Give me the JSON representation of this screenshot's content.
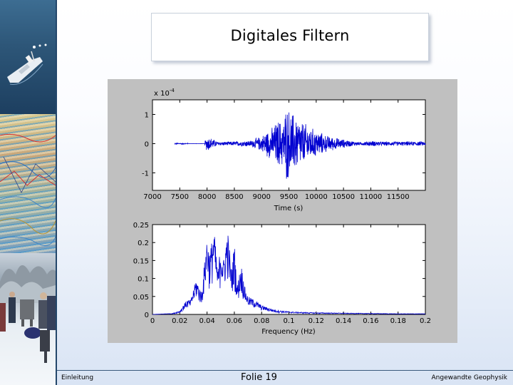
{
  "slide": {
    "title": "Digitales Filtern",
    "footer_left": "Einleitung",
    "footer_center": "Folie 19",
    "footer_right": "Angewandte Geophysik"
  },
  "colors": {
    "signal": "#0000d0",
    "figure_background": "#c0c0c0",
    "axes_background": "#ffffff",
    "slide_border": "#24476b"
  },
  "chart_data": [
    {
      "type": "line",
      "exponent_label": "x 10",
      "exponent_power": "-4",
      "xlabel": "Time (s)",
      "ylabel": "",
      "xlim": [
        7000,
        12000
      ],
      "ylim": [
        -1.6,
        1.5
      ],
      "x_ticks": [
        7000,
        7500,
        8000,
        8500,
        9000,
        9500,
        10000,
        10500,
        11000,
        11500
      ],
      "x_tick_labels": [
        "7000",
        "7500",
        "8000",
        "8500",
        "9000",
        "9500",
        "10000",
        "10500",
        "11000",
        "11500"
      ],
      "y_ticks": [
        1,
        0,
        -1
      ],
      "y_tick_labels": [
        "1",
        "0",
        "-1"
      ],
      "grid": false,
      "series": [
        {
          "description_values": "seismic trace, envelope amplitude by time",
          "envelope": {
            "x": [
              7400,
              7600,
              7900,
              7970,
              8000,
              8200,
              8500,
              8800,
              9000,
              9100,
              9200,
              9300,
              9400,
              9450,
              9500,
              9600,
              9700,
              9800,
              9900,
              10000,
              10200,
              10400,
              10600,
              10800,
              11000,
              11200,
              11500,
              11800
            ],
            "y": [
              0.02,
              0.02,
              0.02,
              0.15,
              0.3,
              0.07,
              0.08,
              0.12,
              0.28,
              0.5,
              0.6,
              0.9,
              0.85,
              1.45,
              1.3,
              1.1,
              0.9,
              0.75,
              0.6,
              0.5,
              0.3,
              0.2,
              0.12,
              0.06,
              0.1,
              0.08,
              0.08,
              0.08
            ]
          }
        }
      ]
    },
    {
      "type": "line",
      "xlabel": "Frequency (Hz)",
      "ylabel": "",
      "xlim": [
        0,
        0.2
      ],
      "ylim": [
        0,
        0.25
      ],
      "x_ticks": [
        0,
        0.02,
        0.04,
        0.06,
        0.08,
        0.1,
        0.12,
        0.14,
        0.16,
        0.18,
        0.2
      ],
      "x_tick_labels": [
        "0",
        "0.02",
        "0.04",
        "0.06",
        "0.08",
        "0.1",
        "0.12",
        "0.14",
        "0.16",
        "0.18",
        "0.2"
      ],
      "y_ticks": [
        0,
        0.05,
        0.1,
        0.15,
        0.2,
        0.25
      ],
      "y_tick_labels": [
        "0",
        "0.05",
        "0.1",
        "0.15",
        "0.2",
        "0.25"
      ],
      "grid": false,
      "series": [
        {
          "description_values": "amplitude spectrum",
          "envelope": {
            "x": [
              0,
              0.015,
              0.02,
              0.025,
              0.028,
              0.032,
              0.036,
              0.04,
              0.042,
              0.045,
              0.048,
              0.05,
              0.052,
              0.055,
              0.058,
              0.06,
              0.062,
              0.065,
              0.068,
              0.07,
              0.075,
              0.08,
              0.09,
              0.1,
              0.11,
              0.12,
              0.14,
              0.16,
              0.18,
              0.2
            ],
            "y": [
              0.0,
              0.003,
              0.01,
              0.04,
              0.04,
              0.1,
              0.06,
              0.22,
              0.17,
              0.24,
              0.12,
              0.2,
              0.15,
              0.24,
              0.12,
              0.2,
              0.08,
              0.14,
              0.07,
              0.05,
              0.04,
              0.025,
              0.012,
              0.008,
              0.006,
              0.005,
              0.004,
              0.003,
              0.002,
              0.002
            ]
          }
        }
      ]
    }
  ]
}
